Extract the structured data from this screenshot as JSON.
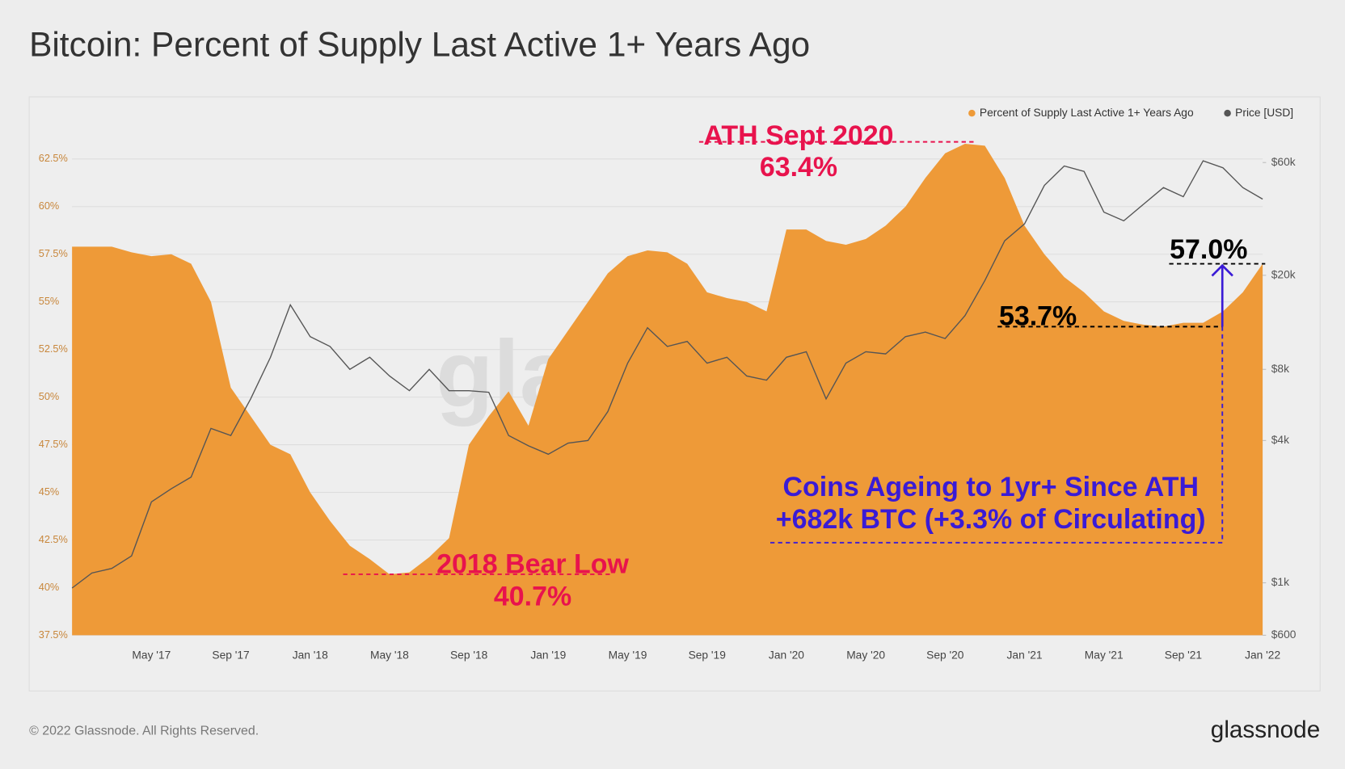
{
  "chart_data": {
    "type": "area_line",
    "title": "Bitcoin: Percent of Supply Last Active 1+ Years Ago",
    "categories": [
      null,
      null,
      null,
      null,
      "May '17",
      null,
      null,
      null,
      "Sep '17",
      null,
      null,
      null,
      "Jan '18",
      null,
      null,
      null,
      "May '18",
      null,
      null,
      null,
      "Sep '18",
      null,
      null,
      null,
      "Jan '19",
      null,
      null,
      null,
      "May '19",
      null,
      null,
      null,
      "Sep '19",
      null,
      null,
      null,
      "Jan '20",
      null,
      null,
      null,
      "May '20",
      null,
      null,
      null,
      "Sep '20",
      null,
      null,
      null,
      "Jan '21",
      null,
      null,
      null,
      "May '21",
      null,
      null,
      null,
      "Sep '21",
      null,
      null,
      null,
      "Jan '22"
    ],
    "series": [
      {
        "name": "Percent of Supply Last Active 1+ Years Ago",
        "color": "#ee9a38",
        "axis": "y",
        "values": [
          57.9,
          57.9,
          57.9,
          57.6,
          57.4,
          57.5,
          57.0,
          55.0,
          50.5,
          49.0,
          47.5,
          47.0,
          45.0,
          43.5,
          42.2,
          41.5,
          40.7,
          40.8,
          41.6,
          42.6,
          47.5,
          49.0,
          50.3,
          48.5,
          52.0,
          53.5,
          55.0,
          56.5,
          57.4,
          57.7,
          57.6,
          57.0,
          55.5,
          55.2,
          55.0,
          54.5,
          58.8,
          58.8,
          58.2,
          58.0,
          58.3,
          59.0,
          60.0,
          61.5,
          62.8,
          63.3,
          63.2,
          61.5,
          59.0,
          57.5,
          56.3,
          55.5,
          54.5,
          54.0,
          53.8,
          53.7,
          53.9,
          53.9,
          54.5,
          55.5,
          57.0
        ]
      },
      {
        "name": "Price [USD]",
        "color": "#555555",
        "axis": "y2",
        "values": [
          950,
          1100,
          1150,
          1300,
          2200,
          2500,
          2800,
          4500,
          4200,
          6000,
          9000,
          15000,
          11000,
          10000,
          8000,
          9000,
          7500,
          6500,
          8000,
          6500,
          6500,
          6400,
          4200,
          3800,
          3500,
          3900,
          4000,
          5300,
          8500,
          12000,
          10000,
          10500,
          8500,
          9000,
          7500,
          7200,
          9000,
          9500,
          6000,
          8500,
          9500,
          9300,
          11000,
          11500,
          10800,
          13500,
          19000,
          28000,
          33000,
          48000,
          58000,
          55000,
          37000,
          34000,
          40000,
          47000,
          43000,
          61000,
          57000,
          47000,
          42000
        ]
      }
    ],
    "ylim": [
      37.5,
      64.5
    ],
    "yticks": [
      {
        "value": 37.5,
        "label": "37.5%"
      },
      {
        "value": 40,
        "label": "40%"
      },
      {
        "value": 42.5,
        "label": "42.5%"
      },
      {
        "value": 45,
        "label": "45%"
      },
      {
        "value": 47.5,
        "label": "47.5%"
      },
      {
        "value": 50,
        "label": "50%"
      },
      {
        "value": 52.5,
        "label": "52.5%"
      },
      {
        "value": 55,
        "label": "55%"
      },
      {
        "value": 57.5,
        "label": "57.5%"
      },
      {
        "value": 60,
        "label": "60%"
      },
      {
        "value": 62.5,
        "label": "62.5%"
      }
    ],
    "y2lim": [
      600,
      90000
    ],
    "y2log": true,
    "y2ticks": [
      {
        "value": 600,
        "label": "$600"
      },
      {
        "value": 1000,
        "label": "$1k"
      },
      {
        "value": 4000,
        "label": "$4k"
      },
      {
        "value": 8000,
        "label": "$8k"
      },
      {
        "value": 20000,
        "label": "$20k"
      },
      {
        "value": 60000,
        "label": "$60k"
      }
    ],
    "grid": true,
    "legend": "top-right",
    "annotations": [
      {
        "title": "ATH Sept 2020",
        "label": "63.4%",
        "value": 63.4,
        "color": "#e8134d"
      },
      {
        "title": "2018 Bear Low",
        "label": "40.7%",
        "value": 40.7,
        "color": "#e8134d"
      },
      {
        "label": "53.7%",
        "value": 53.7,
        "color": "#000000"
      },
      {
        "label": "57.0%",
        "value": 57.0,
        "color": "#000000"
      },
      {
        "title": "Coins Ageing to 1yr+ Since ATH",
        "label": "+682k BTC (+3.3% of Circulating)",
        "color": "#3a1bd6"
      }
    ],
    "watermark": "glassnode",
    "footer": "© 2022 Glassnode. All Rights Reserved.",
    "brand": "glassnode"
  }
}
